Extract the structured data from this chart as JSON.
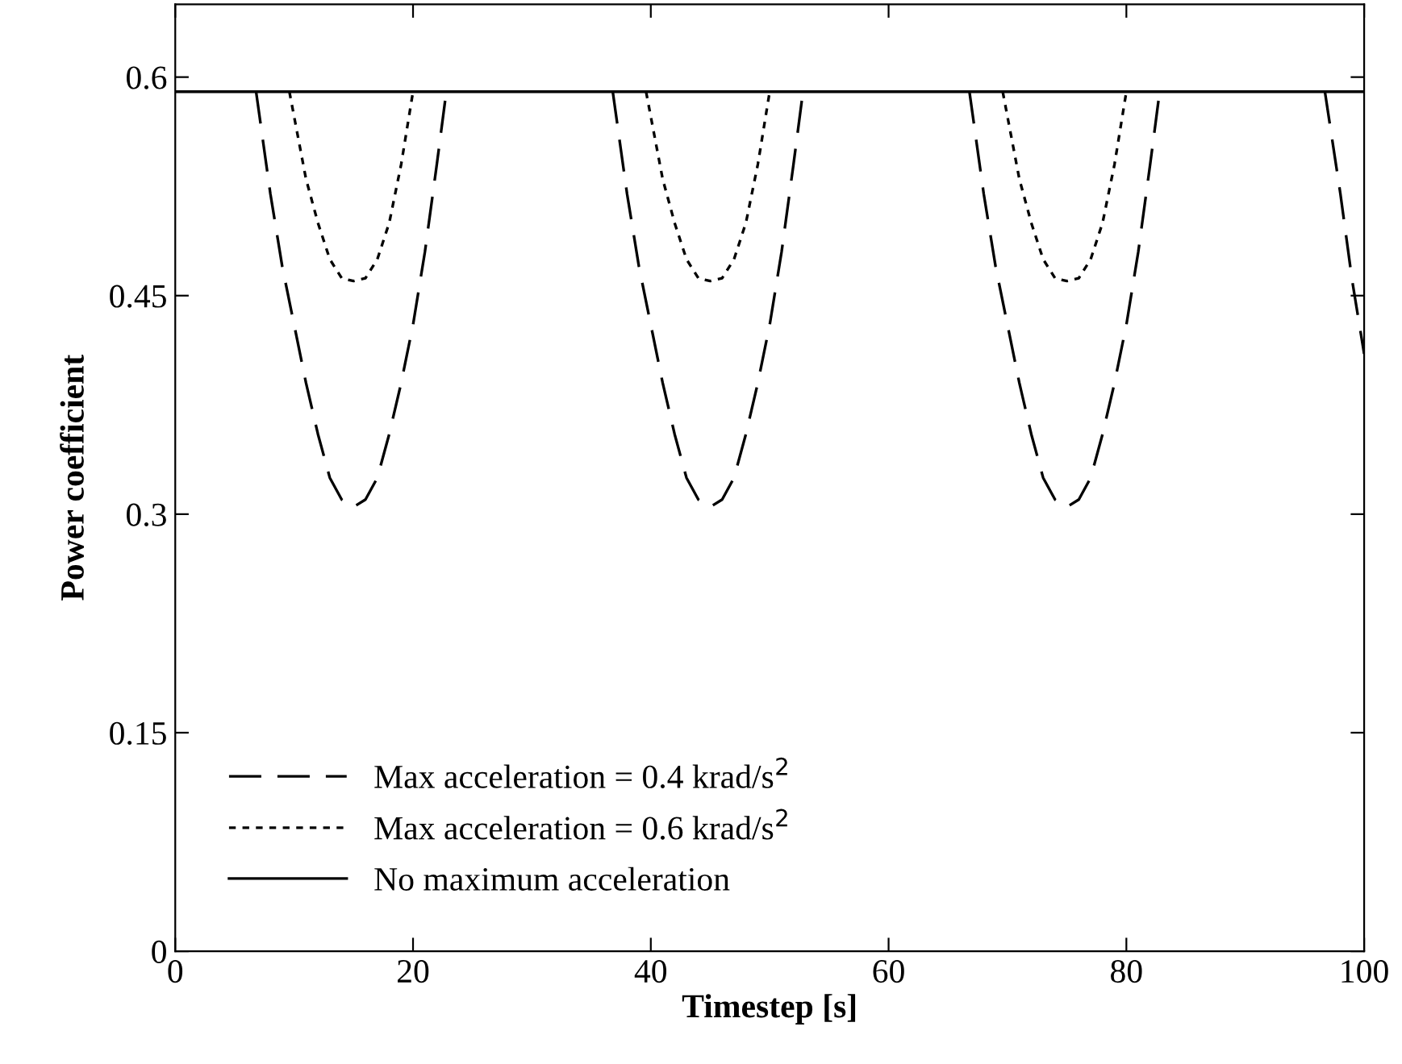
{
  "chart_data": {
    "type": "line",
    "xlabel": "Timestep [s]",
    "ylabel": "Power coefficient",
    "xlim": [
      0,
      100
    ],
    "ylim": [
      0,
      0.65
    ],
    "xticks": [
      0,
      20,
      40,
      60,
      80,
      100
    ],
    "yticks": [
      0,
      0.15,
      0.3,
      0.45,
      0.6
    ],
    "grid": false,
    "legend": "bottom left",
    "marker": "none",
    "series": [
      {
        "name": "Max acceleration = 0.4 krad/s$^{2}$",
        "color": "#000000",
        "line_style": "dashed",
        "x": [
          6.8,
          8,
          9,
          10,
          11,
          12,
          13,
          14,
          15,
          16,
          17,
          18,
          19,
          20,
          21,
          22,
          22.8,
          null,
          36.8,
          38,
          39,
          40,
          41,
          42,
          43,
          44,
          45,
          46,
          47,
          48,
          49,
          50,
          51,
          52,
          52.8,
          null,
          66.8,
          68,
          69,
          70,
          71,
          72,
          73,
          74,
          75,
          76,
          77,
          78,
          79,
          80,
          81,
          82,
          82.8,
          null,
          96.7,
          98,
          99,
          100
        ],
        "values": [
          0.59,
          0.52,
          0.47,
          0.43,
          0.39,
          0.355,
          0.325,
          0.31,
          0.305,
          0.31,
          0.325,
          0.355,
          0.39,
          0.43,
          0.48,
          0.54,
          0.59,
          null,
          0.59,
          0.52,
          0.47,
          0.43,
          0.39,
          0.355,
          0.325,
          0.31,
          0.305,
          0.31,
          0.325,
          0.355,
          0.39,
          0.43,
          0.48,
          0.54,
          0.59,
          null,
          0.59,
          0.52,
          0.47,
          0.43,
          0.39,
          0.355,
          0.325,
          0.31,
          0.305,
          0.31,
          0.325,
          0.355,
          0.39,
          0.43,
          0.48,
          0.54,
          0.59,
          null,
          0.59,
          0.52,
          0.46,
          0.41
        ]
      },
      {
        "name": "Max acceleration = 0.6 krad/s$^{2}$",
        "color": "#000000",
        "line_style": "dotted",
        "x": [
          9.6,
          11,
          12,
          13,
          14,
          15,
          16,
          17,
          18,
          19,
          20,
          null,
          39.6,
          41,
          42,
          43,
          44,
          45,
          46,
          47,
          48,
          49,
          50,
          null,
          69.6,
          71,
          72,
          73,
          74,
          75,
          76,
          77,
          78,
          79,
          80
        ],
        "values": [
          0.59,
          0.53,
          0.5,
          0.475,
          0.462,
          0.46,
          0.462,
          0.475,
          0.5,
          0.54,
          0.59,
          null,
          0.59,
          0.53,
          0.5,
          0.475,
          0.462,
          0.46,
          0.462,
          0.475,
          0.5,
          0.54,
          0.59,
          null,
          0.59,
          0.53,
          0.5,
          0.475,
          0.462,
          0.46,
          0.462,
          0.475,
          0.5,
          0.54,
          0.59
        ]
      },
      {
        "name": "No maximum acceleration",
        "color": "#000000",
        "line_style": "solid",
        "x": [
          0,
          100
        ],
        "values": [
          0.59,
          0.59
        ]
      }
    ]
  }
}
